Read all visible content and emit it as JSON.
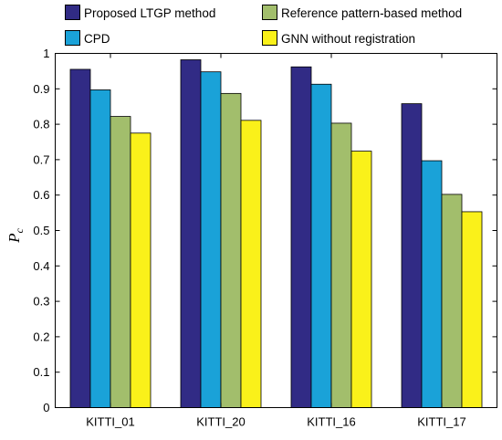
{
  "chart_data": {
    "type": "bar",
    "title": "",
    "xlabel": "",
    "ylabel": "P",
    "ylabel_subscript": "c",
    "ylim": [
      0,
      1
    ],
    "yticks": [
      "0",
      "0.1",
      "0.2",
      "0.3",
      "0.4",
      "0.5",
      "0.6",
      "0.7",
      "0.8",
      "0.9",
      "1"
    ],
    "grid": false,
    "legend_position": "top",
    "categories": [
      "KITTI_01",
      "KITTI_20",
      "KITTI_16",
      "KITTI_17"
    ],
    "series": [
      {
        "name": "Proposed LTGP method",
        "color": "#312B85",
        "values": [
          0.955,
          0.982,
          0.962,
          0.858
        ]
      },
      {
        "name": "CPD",
        "color": "#1AA2D8",
        "values": [
          0.897,
          0.948,
          0.913,
          0.697
        ]
      },
      {
        "name": "Reference pattern-based method",
        "color": "#A2BE6C",
        "values": [
          0.822,
          0.887,
          0.803,
          0.602
        ]
      },
      {
        "name": "GNN without registration",
        "color": "#FAF11A",
        "values": [
          0.775,
          0.811,
          0.724,
          0.553
        ]
      }
    ]
  }
}
